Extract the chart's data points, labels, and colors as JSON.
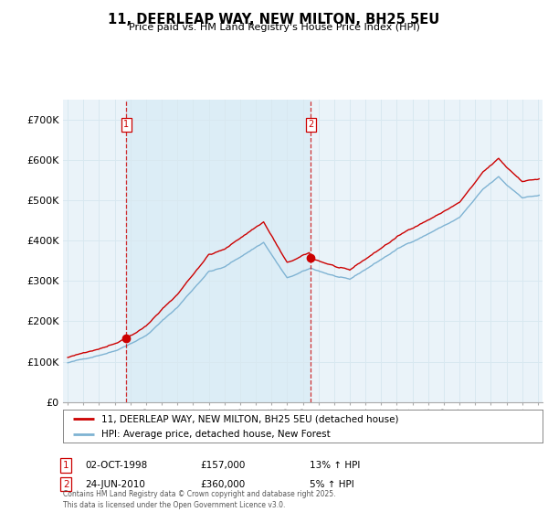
{
  "title": "11, DEERLEAP WAY, NEW MILTON, BH25 5EU",
  "subtitle": "Price paid vs. HM Land Registry's House Price Index (HPI)",
  "legend_line1": "11, DEERLEAP WAY, NEW MILTON, BH25 5EU (detached house)",
  "legend_line2": "HPI: Average price, detached house, New Forest",
  "footnote": "Contains HM Land Registry data © Crown copyright and database right 2025.\nThis data is licensed under the Open Government Licence v3.0.",
  "annotation1_label": "1",
  "annotation1_date": "02-OCT-1998",
  "annotation1_price": "£157,000",
  "annotation1_hpi": "13% ↑ HPI",
  "annotation2_label": "2",
  "annotation2_date": "24-JUN-2010",
  "annotation2_price": "£360,000",
  "annotation2_hpi": "5% ↑ HPI",
  "red_color": "#cc0000",
  "blue_color": "#7fb3d3",
  "grid_color": "#d8e8f0",
  "background_chart": "#eaf3f9",
  "background_color": "#ffffff",
  "ylim": [
    0,
    750000
  ],
  "yticks": [
    0,
    100000,
    200000,
    300000,
    400000,
    500000,
    600000,
    700000
  ],
  "ytick_labels": [
    "£0",
    "£100K",
    "£200K",
    "£300K",
    "£400K",
    "£500K",
    "£600K",
    "£700K"
  ],
  "sale1_year": 1998.75,
  "sale1_price": 157000,
  "sale2_year": 2010.5,
  "sale2_price": 360000,
  "xlim_left": 1994.7,
  "xlim_right": 2025.3
}
